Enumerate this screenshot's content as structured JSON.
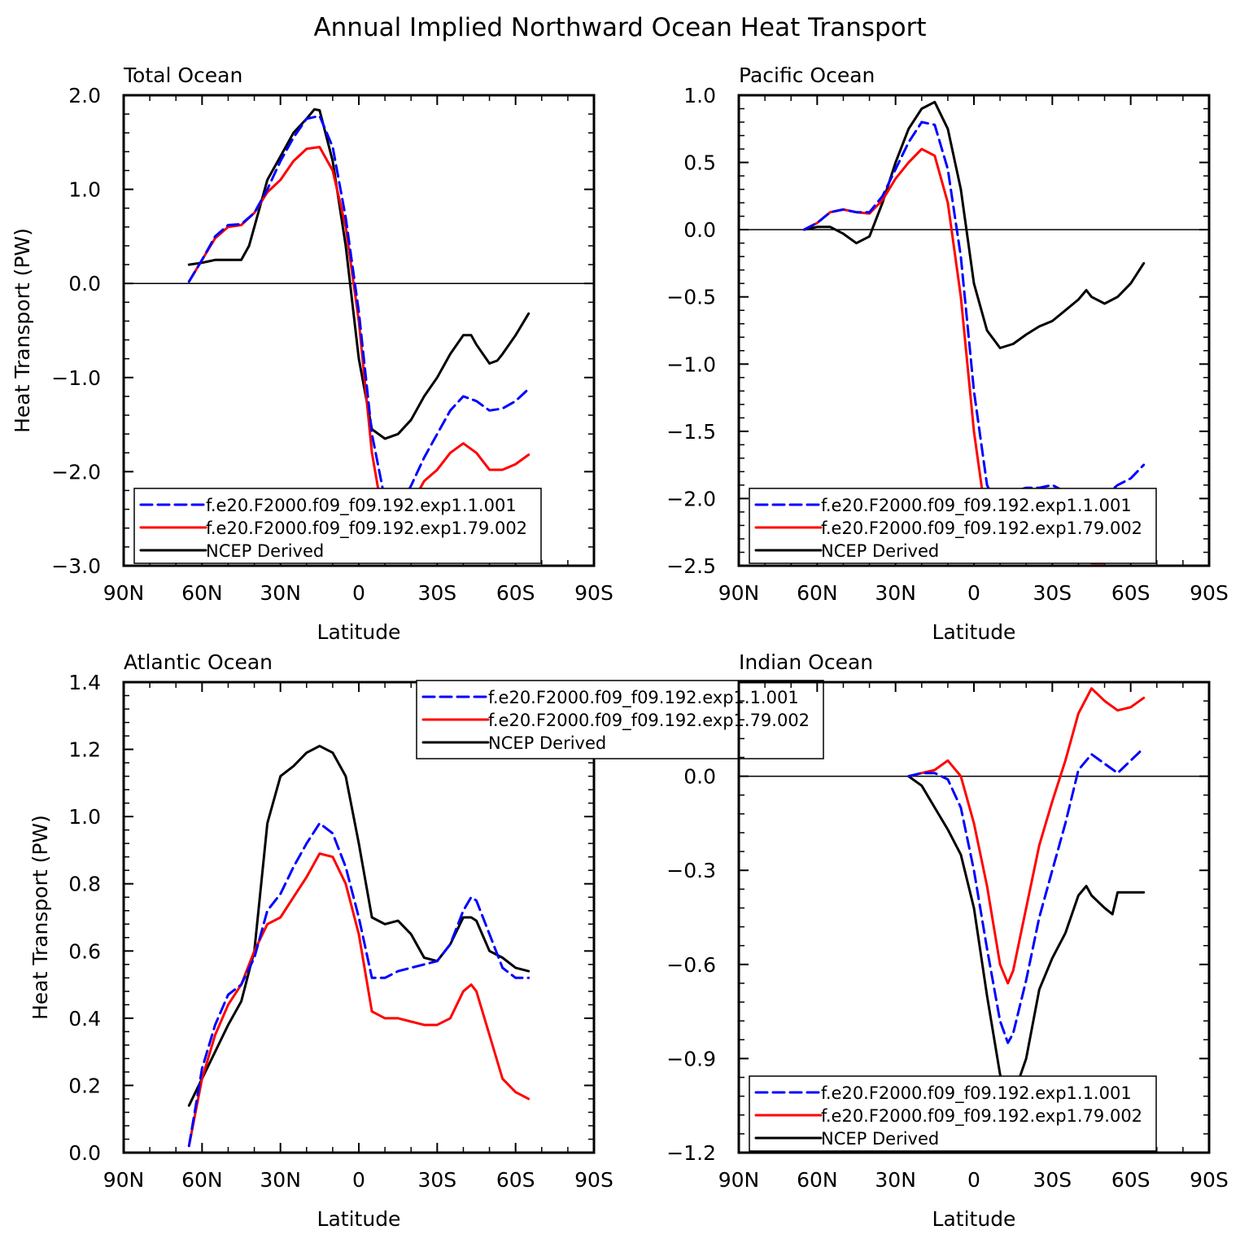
{
  "figure_title": "Annual Implied Northward Ocean Heat Transport",
  "colors": {
    "series_0": "#0000ff",
    "series_1": "#ff0000",
    "series_2": "#000000"
  },
  "chart_data": [
    {
      "type": "line",
      "title": "Total Ocean",
      "xlabel": "Latitude",
      "ylabel": "Heat Transport (PW)",
      "xlim": [
        90,
        -90
      ],
      "x_ticks": [
        90,
        60,
        30,
        0,
        -30,
        -60,
        -90
      ],
      "x_tick_labels": [
        "90N",
        "60N",
        "30N",
        "0",
        "30S",
        "60S",
        "90S"
      ],
      "ylim": [
        -3.0,
        2.0
      ],
      "y_ticks": [
        -3.0,
        -2.0,
        -1.0,
        0.0,
        1.0,
        2.0
      ],
      "y_tick_labels": [
        "−3.0",
        "−2.0",
        "−1.0",
        "0.0",
        "1.0",
        "2.0"
      ],
      "legend_position": "bottom-left",
      "series": [
        {
          "name": "f.e20.F2000.f09_f09.192.exp1.1.001",
          "style": "dashed",
          "x": [
            65,
            60,
            55,
            50,
            45,
            40,
            35,
            30,
            25,
            20,
            15,
            10,
            5,
            0,
            -5,
            -10,
            -15,
            -20,
            -25,
            -30,
            -35,
            -40,
            -45,
            -50,
            -55,
            -60,
            -65
          ],
          "y": [
            0.02,
            0.25,
            0.5,
            0.62,
            0.63,
            0.75,
            1.0,
            1.3,
            1.55,
            1.75,
            1.78,
            1.45,
            0.7,
            -0.3,
            -1.6,
            -2.3,
            -2.4,
            -2.15,
            -1.85,
            -1.6,
            -1.35,
            -1.2,
            -1.25,
            -1.35,
            -1.33,
            -1.25,
            -1.12
          ]
        },
        {
          "name": "f.e20.F2000.f09_f09.192.exp1.79.002",
          "style": "solid",
          "x": [
            65,
            60,
            55,
            50,
            45,
            40,
            35,
            30,
            25,
            20,
            15,
            10,
            5,
            0,
            -5,
            -10,
            -15,
            -20,
            -25,
            -30,
            -35,
            -40,
            -45,
            -50,
            -55,
            -60,
            -65
          ],
          "y": [
            0.02,
            0.25,
            0.48,
            0.6,
            0.62,
            0.75,
            0.97,
            1.1,
            1.3,
            1.43,
            1.45,
            1.2,
            0.6,
            -0.4,
            -1.8,
            -2.6,
            -2.62,
            -2.35,
            -2.1,
            -1.98,
            -1.8,
            -1.7,
            -1.8,
            -1.98,
            -1.98,
            -1.92,
            -1.82
          ]
        },
        {
          "name": "NCEP Derived",
          "style": "solid",
          "x": [
            65,
            60,
            55,
            50,
            45,
            42,
            40,
            35,
            30,
            25,
            20,
            17,
            15,
            10,
            5,
            0,
            -5,
            -10,
            -15,
            -20,
            -25,
            -30,
            -35,
            -40,
            -43,
            -45,
            -50,
            -53,
            -55,
            -60,
            -65
          ],
          "y": [
            0.2,
            0.22,
            0.25,
            0.25,
            0.25,
            0.4,
            0.6,
            1.1,
            1.35,
            1.6,
            1.75,
            1.85,
            1.84,
            1.3,
            0.4,
            -0.8,
            -1.55,
            -1.65,
            -1.6,
            -1.45,
            -1.2,
            -1.0,
            -0.75,
            -0.55,
            -0.55,
            -0.65,
            -0.85,
            -0.82,
            -0.75,
            -0.55,
            -0.32
          ]
        }
      ]
    },
    {
      "type": "line",
      "title": "Pacific Ocean",
      "xlabel": "Latitude",
      "ylabel": "",
      "xlim": [
        90,
        -90
      ],
      "x_ticks": [
        90,
        60,
        30,
        0,
        -30,
        -60,
        -90
      ],
      "x_tick_labels": [
        "90N",
        "60N",
        "30N",
        "0",
        "30S",
        "60S",
        "90S"
      ],
      "ylim": [
        -2.5,
        1.0
      ],
      "y_ticks": [
        -2.5,
        -2.0,
        -1.5,
        -1.0,
        -0.5,
        0.0,
        0.5,
        1.0
      ],
      "y_tick_labels": [
        "−2.5",
        "−2.0",
        "−1.5",
        "−1.0",
        "−0.5",
        "0.0",
        "0.5",
        "1.0"
      ],
      "legend_position": "bottom",
      "series": [
        {
          "name": "f.e20.F2000.f09_f09.192.exp1.1.001",
          "style": "dashed",
          "x": [
            65,
            60,
            55,
            50,
            45,
            40,
            35,
            30,
            25,
            20,
            15,
            10,
            5,
            0,
            -5,
            -10,
            -15,
            -20,
            -25,
            -30,
            -35,
            -40,
            -45,
            -50,
            -55,
            -60,
            -65
          ],
          "y": [
            0.0,
            0.05,
            0.13,
            0.15,
            0.13,
            0.13,
            0.25,
            0.45,
            0.65,
            0.8,
            0.78,
            0.45,
            -0.2,
            -1.2,
            -1.9,
            -2.1,
            -1.95,
            -1.92,
            -1.92,
            -1.9,
            -1.95,
            -2.0,
            -2.02,
            -1.98,
            -1.9,
            -1.85,
            -1.75
          ]
        },
        {
          "name": "f.e20.F2000.f09_f09.192.exp1.79.002",
          "style": "solid",
          "x": [
            65,
            60,
            55,
            50,
            45,
            40,
            35,
            30,
            25,
            20,
            15,
            10,
            5,
            0,
            -5,
            -10,
            -15,
            -20,
            -25,
            -30,
            -35,
            -40,
            -45,
            -50,
            -55,
            -60,
            -65
          ],
          "y": [
            0.0,
            0.05,
            0.13,
            0.15,
            0.13,
            0.12,
            0.22,
            0.38,
            0.5,
            0.6,
            0.55,
            0.2,
            -0.5,
            -1.5,
            -2.2,
            -2.38,
            -2.35,
            -2.3,
            -2.28,
            -2.3,
            -2.38,
            -2.42,
            -2.48,
            -2.48,
            -2.4,
            -2.3,
            -2.22
          ]
        },
        {
          "name": "NCEP Derived",
          "style": "solid",
          "x": [
            65,
            60,
            55,
            50,
            45,
            40,
            35,
            30,
            25,
            20,
            15,
            10,
            5,
            0,
            -5,
            -10,
            -15,
            -20,
            -25,
            -30,
            -35,
            -40,
            -43,
            -45,
            -50,
            -55,
            -60,
            -65
          ],
          "y": [
            0.0,
            0.02,
            0.02,
            -0.03,
            -0.1,
            -0.05,
            0.2,
            0.5,
            0.75,
            0.9,
            0.95,
            0.75,
            0.3,
            -0.4,
            -0.75,
            -0.88,
            -0.85,
            -0.78,
            -0.72,
            -0.68,
            -0.6,
            -0.52,
            -0.45,
            -0.5,
            -0.55,
            -0.5,
            -0.4,
            -0.25
          ]
        }
      ]
    },
    {
      "type": "line",
      "title": "Atlantic Ocean",
      "xlabel": "Latitude",
      "ylabel": "Heat Transport (PW)",
      "xlim": [
        90,
        -90
      ],
      "x_ticks": [
        90,
        60,
        30,
        0,
        -30,
        -60,
        -90
      ],
      "x_tick_labels": [
        "90N",
        "60N",
        "30N",
        "0",
        "30S",
        "60S",
        "90S"
      ],
      "ylim": [
        0.0,
        1.4
      ],
      "y_ticks": [
        0.0,
        0.2,
        0.4,
        0.6,
        0.8,
        1.0,
        1.2,
        1.4
      ],
      "y_tick_labels": [
        "0.0",
        "0.2",
        "0.4",
        "0.6",
        "0.8",
        "1.0",
        "1.2",
        "1.4"
      ],
      "legend_position": "top-right",
      "series": [
        {
          "name": "f.e20.F2000.f09_f09.192.exp1.1.001",
          "style": "dashed",
          "x": [
            65,
            60,
            55,
            50,
            45,
            40,
            35,
            30,
            25,
            20,
            15,
            10,
            5,
            0,
            -5,
            -10,
            -15,
            -20,
            -25,
            -30,
            -35,
            -40,
            -43,
            -45,
            -50,
            -55,
            -60,
            -65
          ],
          "y": [
            0.02,
            0.25,
            0.38,
            0.47,
            0.5,
            0.58,
            0.72,
            0.77,
            0.85,
            0.92,
            0.98,
            0.95,
            0.85,
            0.7,
            0.52,
            0.52,
            0.54,
            0.55,
            0.56,
            0.57,
            0.62,
            0.72,
            0.76,
            0.75,
            0.65,
            0.55,
            0.52,
            0.52
          ]
        },
        {
          "name": "f.e20.F2000.f09_f09.192.exp1.79.002",
          "style": "solid",
          "x": [
            65,
            60,
            55,
            50,
            45,
            40,
            35,
            30,
            25,
            20,
            15,
            10,
            5,
            0,
            -5,
            -10,
            -15,
            -20,
            -25,
            -30,
            -35,
            -40,
            -43,
            -45,
            -50,
            -55,
            -60,
            -65
          ],
          "y": [
            0.02,
            0.22,
            0.35,
            0.44,
            0.5,
            0.6,
            0.68,
            0.7,
            0.76,
            0.82,
            0.89,
            0.88,
            0.8,
            0.65,
            0.42,
            0.4,
            0.4,
            0.39,
            0.38,
            0.38,
            0.4,
            0.48,
            0.5,
            0.48,
            0.35,
            0.22,
            0.18,
            0.16
          ]
        },
        {
          "name": "NCEP Derived",
          "style": "solid",
          "x": [
            65,
            60,
            55,
            50,
            45,
            40,
            35,
            30,
            25,
            20,
            15,
            10,
            5,
            0,
            -5,
            -10,
            -15,
            -20,
            -25,
            -30,
            -35,
            -40,
            -43,
            -45,
            -50,
            -55,
            -60,
            -65
          ],
          "y": [
            0.14,
            0.22,
            0.3,
            0.38,
            0.45,
            0.6,
            0.98,
            1.12,
            1.15,
            1.19,
            1.21,
            1.19,
            1.12,
            0.92,
            0.7,
            0.68,
            0.69,
            0.65,
            0.58,
            0.57,
            0.62,
            0.7,
            0.7,
            0.69,
            0.6,
            0.58,
            0.55,
            0.54
          ]
        }
      ]
    },
    {
      "type": "line",
      "title": "Indian Ocean",
      "xlabel": "Latitude",
      "ylabel": "",
      "xlim": [
        90,
        -90
      ],
      "x_ticks": [
        90,
        60,
        30,
        0,
        -30,
        -60,
        -90
      ],
      "x_tick_labels": [
        "90N",
        "60N",
        "30N",
        "0",
        "30S",
        "60S",
        "90S"
      ],
      "ylim": [
        -1.2,
        0.3
      ],
      "y_ticks": [
        -1.2,
        -0.9,
        -0.6,
        -0.3,
        0.0
      ],
      "y_tick_labels": [
        "−1.2",
        "−0.9",
        "−0.6",
        "−0.3",
        "0.0"
      ],
      "legend_position": "bottom-left",
      "series": [
        {
          "name": "f.e20.F2000.f09_f09.192.exp1.1.001",
          "style": "dashed",
          "x": [
            25,
            20,
            15,
            10,
            5,
            0,
            -5,
            -10,
            -13,
            -15,
            -20,
            -25,
            -30,
            -35,
            -40,
            -45,
            -50,
            -55,
            -60,
            -65
          ],
          "y": [
            0.0,
            0.01,
            0.01,
            -0.01,
            -0.1,
            -0.3,
            -0.55,
            -0.78,
            -0.85,
            -0.82,
            -0.65,
            -0.45,
            -0.3,
            -0.15,
            0.02,
            0.07,
            0.04,
            0.01,
            0.05,
            0.09
          ]
        },
        {
          "name": "f.e20.F2000.f09_f09.192.exp1.79.002",
          "style": "solid",
          "x": [
            25,
            20,
            15,
            10,
            5,
            0,
            -5,
            -10,
            -13,
            -15,
            -20,
            -25,
            -30,
            -35,
            -40,
            -45,
            -50,
            -55,
            -60,
            -65
          ],
          "y": [
            0.0,
            0.01,
            0.02,
            0.05,
            0.0,
            -0.15,
            -0.35,
            -0.6,
            -0.66,
            -0.62,
            -0.42,
            -0.22,
            -0.08,
            0.05,
            0.2,
            0.28,
            0.24,
            0.21,
            0.22,
            0.25
          ]
        },
        {
          "name": "NCEP Derived",
          "style": "solid",
          "x": [
            25,
            20,
            15,
            10,
            5,
            0,
            -5,
            -10,
            -13,
            -15,
            -20,
            -25,
            -30,
            -35,
            -40,
            -43,
            -45,
            -50,
            -53,
            -55,
            -60,
            -65
          ],
          "y": [
            0.0,
            -0.03,
            -0.1,
            -0.17,
            -0.25,
            -0.42,
            -0.7,
            -0.95,
            -1.05,
            -1.02,
            -0.9,
            -0.68,
            -0.58,
            -0.5,
            -0.38,
            -0.35,
            -0.38,
            -0.42,
            -0.44,
            -0.37,
            -0.37,
            -0.37
          ]
        }
      ]
    }
  ]
}
